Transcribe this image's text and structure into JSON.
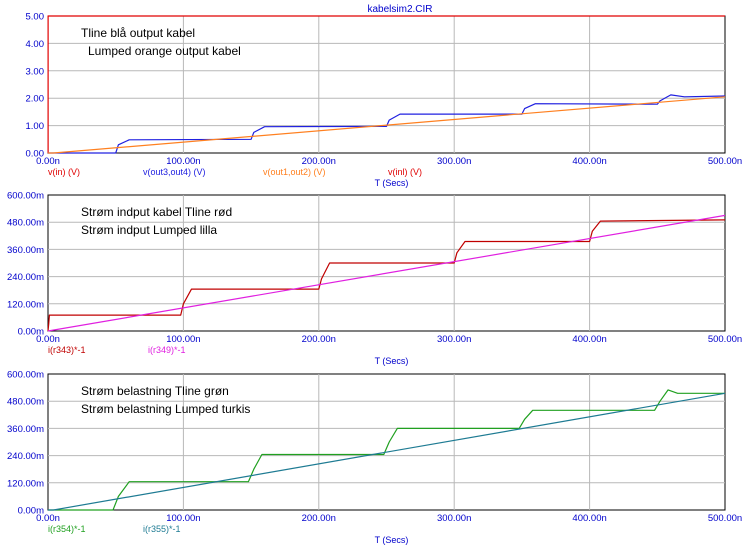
{
  "window_title": "kabelsim2.CIR",
  "colors": {
    "blue": "#2020e0",
    "orange": "#ff8020",
    "red": "#e00000",
    "darkred": "#c00000",
    "magenta": "#e020e0",
    "green": "#20a020",
    "teal": "#1e7b93",
    "axis_text": "#0000cc",
    "grid": "#b8b8b8"
  },
  "chart_data": [
    {
      "type": "line",
      "annotation": [
        "Tline blå output kabel",
        "Lumped orange output kabel"
      ],
      "xlabel": "T (Secs)",
      "xlim": [
        0,
        500
      ],
      "ylim": [
        0,
        5
      ],
      "xticks": [
        "0.00n",
        "100.00n",
        "200.00n",
        "300.00n",
        "400.00n",
        "500.00n"
      ],
      "yticks": [
        "0.00",
        "1.00",
        "2.00",
        "3.00",
        "4.00",
        "5.00"
      ],
      "legend": [
        {
          "label": "v(in) (V)",
          "color": "#e00000",
          "pos": 0
        },
        {
          "label": "v(out3,out4) (V)",
          "color": "#2020e0",
          "pos": 95
        },
        {
          "label": "v(out1,out2) (V)",
          "color": "#ff8020",
          "pos": 215
        },
        {
          "label": "v(inl) (V)",
          "color": "#e00000",
          "pos": 340
        }
      ],
      "series": [
        {
          "name": "v(in)",
          "color": "#e00000",
          "x": [
            0,
            0,
            0.1,
            0.1,
            500
          ],
          "y": [
            0,
            0,
            0,
            5,
            5
          ]
        },
        {
          "name": "v(out3,out4)",
          "color": "#2020e0",
          "x": [
            0,
            50,
            52,
            60,
            150,
            152,
            160,
            250,
            252,
            260,
            350,
            352,
            360,
            450,
            452,
            460,
            470,
            500
          ],
          "y": [
            0,
            0,
            0.3,
            0.48,
            0.5,
            0.75,
            0.96,
            0.97,
            1.2,
            1.42,
            1.42,
            1.62,
            1.8,
            1.78,
            1.9,
            2.12,
            2.05,
            2.08
          ]
        },
        {
          "name": "v(out1,out2)",
          "color": "#ff8020",
          "x": [
            0,
            4,
            500
          ],
          "y": [
            0,
            0,
            2.05
          ]
        }
      ]
    },
    {
      "type": "line",
      "annotation": [
        "Strøm indput kabel Tline rød",
        "Strøm indput Lumped lilla"
      ],
      "xlabel": "T (Secs)",
      "xlim": [
        0,
        500
      ],
      "ylim": [
        0,
        600
      ],
      "xticks": [
        "0.00n",
        "100.00n",
        "200.00n",
        "300.00n",
        "400.00n",
        "500.00n"
      ],
      "yticks": [
        "0.00m",
        "120.00m",
        "240.00m",
        "360.00m",
        "480.00m",
        "600.00m"
      ],
      "legend": [
        {
          "label": "i(r343)*-1",
          "color": "#c00000",
          "pos": 0
        },
        {
          "label": "i(r349)*-1",
          "color": "#e020e0",
          "pos": 100
        }
      ],
      "series": [
        {
          "name": "i(r343)*-1",
          "color": "#c00000",
          "x": [
            0,
            0.5,
            1,
            98,
            100,
            106,
            200,
            202,
            208,
            300,
            302,
            308,
            400,
            402,
            408,
            500
          ],
          "y": [
            0,
            30,
            70,
            70,
            120,
            185,
            185,
            230,
            300,
            300,
            345,
            395,
            395,
            440,
            485,
            490
          ]
        },
        {
          "name": "i(r349)*-1",
          "color": "#e020e0",
          "x": [
            0,
            500
          ],
          "y": [
            0,
            510
          ]
        }
      ]
    },
    {
      "type": "line",
      "annotation": [
        "Strøm belastning Tline grøn",
        "Strøm belastning Lumped turkis"
      ],
      "xlabel": "T (Secs)",
      "xlim": [
        0,
        500
      ],
      "ylim": [
        0,
        600
      ],
      "xticks": [
        "0.00n",
        "100.00n",
        "200.00n",
        "300.00n",
        "400.00n",
        "500.00n"
      ],
      "yticks": [
        "0.00m",
        "120.00m",
        "240.00m",
        "360.00m",
        "480.00m",
        "600.00m"
      ],
      "legend": [
        {
          "label": "i(r354)*-1",
          "color": "#20a020",
          "pos": 0
        },
        {
          "label": "i(r355)*-1",
          "color": "#1e7b93",
          "pos": 95
        }
      ],
      "series": [
        {
          "name": "i(r354)*-1",
          "color": "#20a020",
          "x": [
            0,
            48,
            52,
            60,
            148,
            152,
            158,
            248,
            252,
            258,
            348,
            352,
            358,
            448,
            452,
            458,
            465,
            500
          ],
          "y": [
            0,
            0,
            60,
            125,
            125,
            180,
            245,
            245,
            300,
            360,
            360,
            400,
            440,
            440,
            480,
            530,
            515,
            515
          ]
        },
        {
          "name": "i(r355)*-1",
          "color": "#1e7b93",
          "x": [
            0,
            4,
            500
          ],
          "y": [
            0,
            0,
            515
          ]
        }
      ]
    }
  ]
}
